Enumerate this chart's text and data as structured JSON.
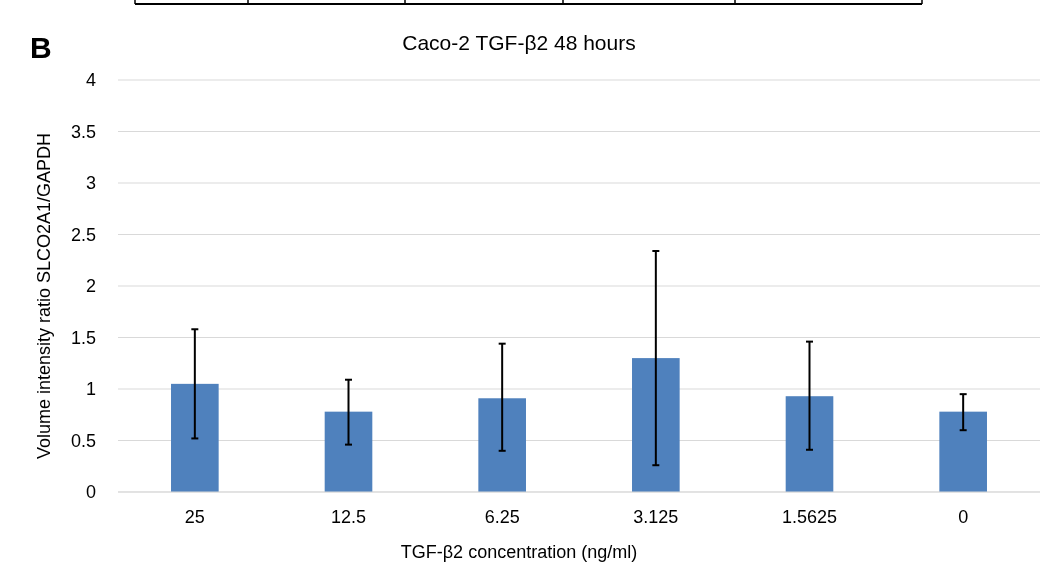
{
  "chart_data": {
    "type": "bar",
    "title": "Caco-2 TGF-β2 48 hours",
    "xlabel": "TGF-β2 concentration (ng/ml)",
    "ylabel": "Volume intensity ratio SLCO2A1/GAPDH",
    "annotations": [
      "B"
    ],
    "categories": [
      "25",
      "12.5",
      "6.25",
      "3.125",
      "1.5625",
      "0"
    ],
    "values": [
      1.05,
      0.78,
      0.91,
      1.3,
      0.93,
      0.78
    ],
    "errors": [
      [
        0.52,
        1.58
      ],
      [
        0.46,
        1.09
      ],
      [
        0.4,
        1.44
      ],
      [
        0.26,
        2.34
      ],
      [
        0.41,
        1.46
      ],
      [
        0.6,
        0.95
      ]
    ],
    "color": "#4f81bd",
    "ylim": [
      0,
      4
    ],
    "yticks": [
      0,
      0.5,
      1,
      1.5,
      2,
      2.5,
      3,
      3.5,
      4
    ],
    "grid": "y"
  }
}
